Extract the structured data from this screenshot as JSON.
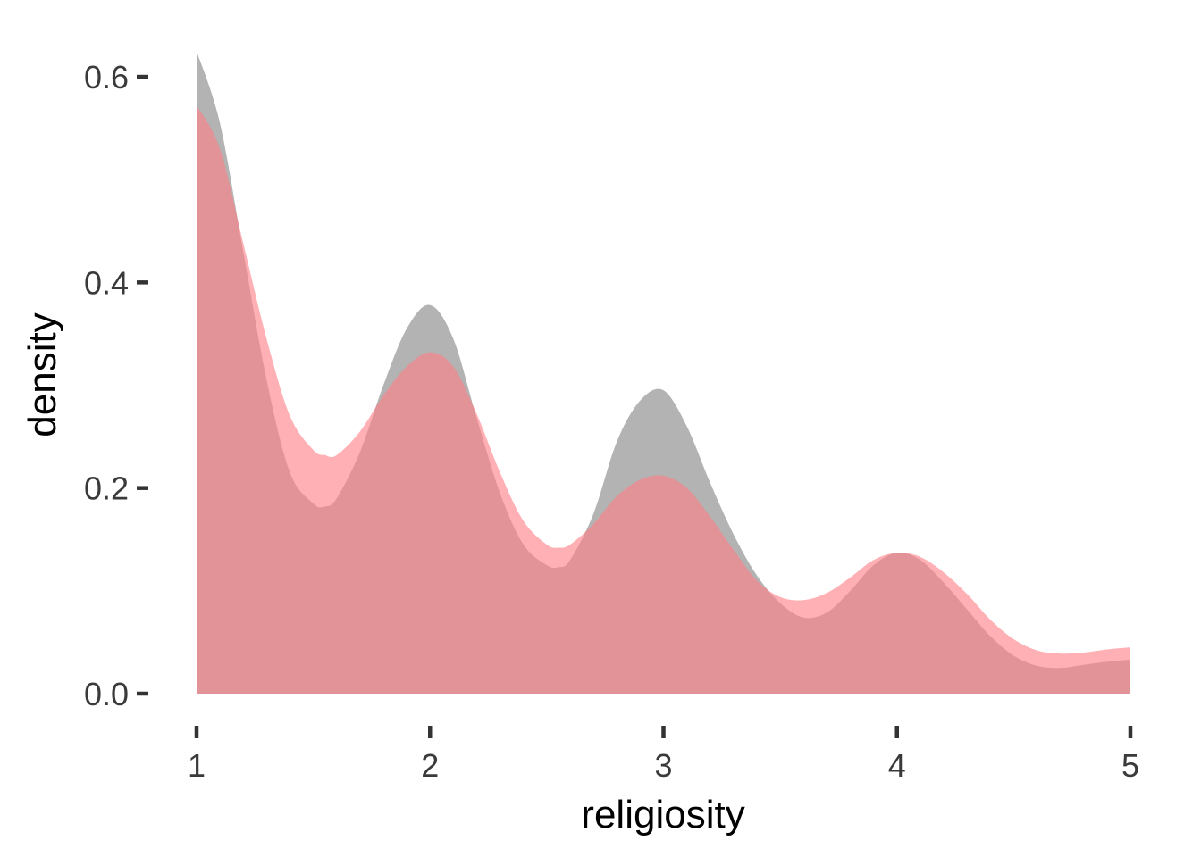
{
  "chart_data": {
    "type": "area",
    "title": "",
    "xlabel": "religiosity",
    "ylabel": "density",
    "xlim": [
      1,
      5
    ],
    "ylim": [
      0,
      0.62
    ],
    "x_ticks": [
      1,
      2,
      3,
      4,
      5
    ],
    "x_tick_labels": [
      "1",
      "2",
      "3",
      "4",
      "5"
    ],
    "y_ticks": [
      0,
      0.2,
      0.4,
      0.6
    ],
    "y_tick_labels": [
      "0.0",
      "0.2",
      "0.4",
      "0.6"
    ],
    "grid": false,
    "legend": "none",
    "x": [
      1.0,
      1.1,
      1.2,
      1.3,
      1.4,
      1.5,
      1.55,
      1.6,
      1.7,
      1.8,
      1.9,
      2.0,
      2.1,
      2.2,
      2.3,
      2.4,
      2.5,
      2.55,
      2.6,
      2.7,
      2.8,
      2.9,
      3.0,
      3.1,
      3.2,
      3.3,
      3.4,
      3.5,
      3.6,
      3.7,
      3.8,
      3.9,
      4.0,
      4.1,
      4.2,
      4.3,
      4.4,
      4.5,
      4.6,
      4.7,
      4.8,
      4.9,
      5.0
    ],
    "series": [
      {
        "color": "#999999",
        "opacity": 0.75,
        "values": [
          0.625,
          0.555,
          0.43,
          0.305,
          0.215,
          0.185,
          0.182,
          0.19,
          0.235,
          0.3,
          0.355,
          0.378,
          0.345,
          0.268,
          0.195,
          0.145,
          0.125,
          0.123,
          0.13,
          0.175,
          0.245,
          0.285,
          0.295,
          0.26,
          0.205,
          0.155,
          0.115,
          0.088,
          0.074,
          0.079,
          0.1,
          0.125,
          0.137,
          0.13,
          0.108,
          0.082,
          0.056,
          0.037,
          0.027,
          0.025,
          0.028,
          0.031,
          0.033
        ]
      },
      {
        "color": "#ff7f86",
        "opacity": 0.62,
        "values": [
          0.572,
          0.53,
          0.438,
          0.345,
          0.27,
          0.237,
          0.232,
          0.232,
          0.255,
          0.29,
          0.318,
          0.332,
          0.318,
          0.272,
          0.215,
          0.168,
          0.145,
          0.142,
          0.145,
          0.165,
          0.192,
          0.208,
          0.212,
          0.2,
          0.172,
          0.14,
          0.11,
          0.094,
          0.091,
          0.098,
          0.113,
          0.13,
          0.137,
          0.133,
          0.118,
          0.097,
          0.072,
          0.053,
          0.042,
          0.039,
          0.04,
          0.043,
          0.045
        ]
      }
    ]
  }
}
